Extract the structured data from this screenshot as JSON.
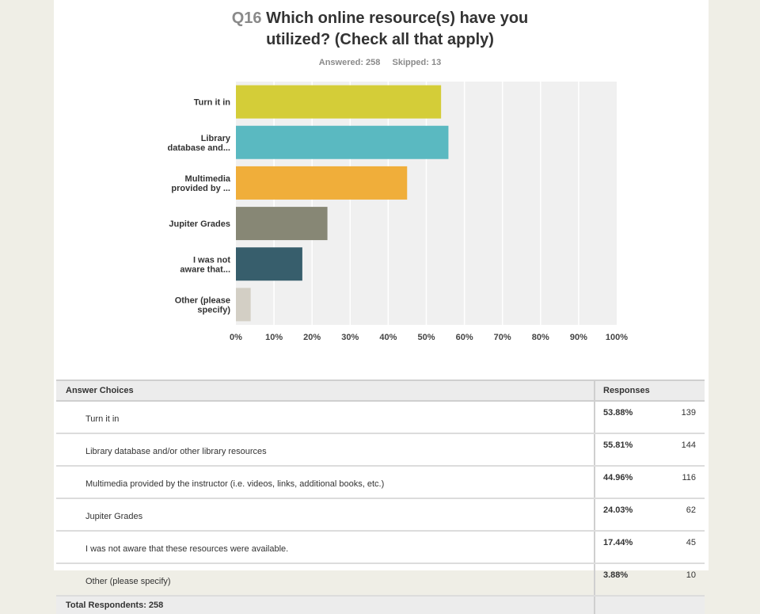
{
  "question": {
    "number": "Q16",
    "line1": "Which online resource(s) have you",
    "line2": "utilized? (Check all that apply)"
  },
  "stats": {
    "answered": "Answered: 258",
    "skipped": "Skipped: 13"
  },
  "colors": {
    "chart_bg": "#f0f0f0",
    "gridline": "#ffffff",
    "bars": [
      "#d4cd38",
      "#5ab9c1",
      "#f0ae3a",
      "#878775",
      "#375e6c",
      "#d3cfc5"
    ]
  },
  "chart_data": {
    "type": "bar",
    "orientation": "horizontal",
    "categories": [
      [
        "Turn it in"
      ],
      [
        "Library",
        "database and..."
      ],
      [
        "Multimedia",
        "provided by ..."
      ],
      [
        "Jupiter Grades"
      ],
      [
        "I was not",
        "aware that..."
      ],
      [
        "Other (please",
        "specify)"
      ]
    ],
    "values": [
      53.88,
      55.81,
      44.96,
      24.03,
      17.44,
      3.88
    ],
    "xlim": [
      0,
      100
    ],
    "xticks": [
      "0%",
      "10%",
      "20%",
      "30%",
      "40%",
      "50%",
      "60%",
      "70%",
      "80%",
      "90%",
      "100%"
    ],
    "grid": true
  },
  "table": {
    "header": {
      "choices": "Answer Choices",
      "responses": "Responses"
    },
    "rows": [
      {
        "label": "Turn it in",
        "percent": "53.88%",
        "count": "139"
      },
      {
        "label": "Library database and/or other library resources",
        "percent": "55.81%",
        "count": "144"
      },
      {
        "label": "Multimedia provided by the instructor (i.e. videos, links, additional books, etc.)",
        "percent": "44.96%",
        "count": "116"
      },
      {
        "label": "Jupiter Grades",
        "percent": "24.03%",
        "count": "62"
      },
      {
        "label": "I was not aware that these resources were available.",
        "percent": "17.44%",
        "count": "45"
      },
      {
        "label": "Other (please specify)",
        "percent": "3.88%",
        "count": "10"
      }
    ],
    "footer": "Total Respondents: 258"
  }
}
